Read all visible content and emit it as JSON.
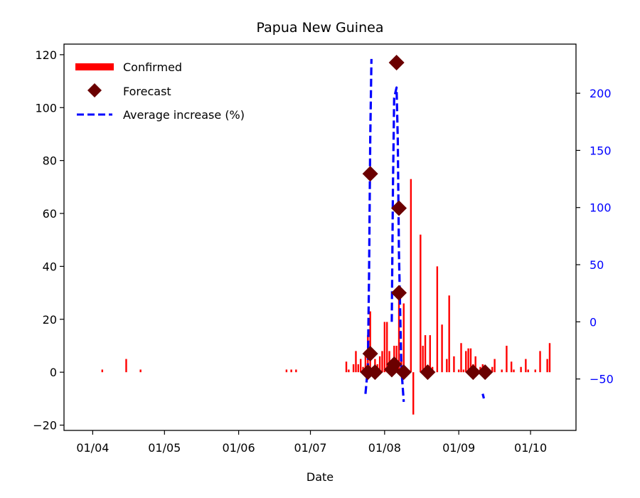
{
  "chart_data": {
    "type": "bar",
    "title": "Papua New Guinea",
    "xlabel": "Date",
    "ylabel": "",
    "y2label": "",
    "x_ticks": [
      "01/04",
      "01/05",
      "01/06",
      "01/07",
      "01/08",
      "01/09",
      "01/10"
    ],
    "x_tick_dates": [
      "2020-04-01",
      "2020-05-01",
      "2020-06-01",
      "2020-07-01",
      "2020-08-01",
      "2020-09-01",
      "2020-10-01"
    ],
    "xlim": [
      "2020-03-20",
      "2020-10-20"
    ],
    "ylim": [
      -22,
      124
    ],
    "y2lim": [
      -95,
      243
    ],
    "y_ticks": [
      -20,
      0,
      20,
      40,
      60,
      80,
      100,
      120
    ],
    "y2_ticks": [
      -50,
      0,
      50,
      100,
      150,
      200
    ],
    "legend_position": "top-left",
    "colors": {
      "confirmed": "#ff0000",
      "forecast": "#6b0000",
      "average": "#0000ff",
      "right_axis": "#0000ff"
    },
    "series": [
      {
        "name": "Confirmed",
        "kind": "bar",
        "axis": "left",
        "points": [
          [
            "2020-04-05",
            1
          ],
          [
            "2020-04-15",
            5
          ],
          [
            "2020-04-21",
            1
          ],
          [
            "2020-06-21",
            1
          ],
          [
            "2020-06-23",
            1
          ],
          [
            "2020-06-25",
            1
          ],
          [
            "2020-07-16",
            4
          ],
          [
            "2020-07-17",
            1
          ],
          [
            "2020-07-19",
            3
          ],
          [
            "2020-07-20",
            8
          ],
          [
            "2020-07-21",
            3
          ],
          [
            "2020-07-22",
            5
          ],
          [
            "2020-07-23",
            2
          ],
          [
            "2020-07-24",
            8
          ],
          [
            "2020-07-25",
            14
          ],
          [
            "2020-07-26",
            23
          ],
          [
            "2020-07-27",
            2
          ],
          [
            "2020-07-28",
            5
          ],
          [
            "2020-07-29",
            3
          ],
          [
            "2020-07-30",
            6
          ],
          [
            "2020-07-31",
            8
          ],
          [
            "2020-08-01",
            19
          ],
          [
            "2020-08-02",
            19
          ],
          [
            "2020-08-03",
            8
          ],
          [
            "2020-08-04",
            3
          ],
          [
            "2020-08-05",
            10
          ],
          [
            "2020-08-06",
            10
          ],
          [
            "2020-08-07",
            30
          ],
          [
            "2020-08-08",
            5
          ],
          [
            "2020-08-09",
            26
          ],
          [
            "2020-08-10",
            1
          ],
          [
            "2020-08-12",
            73
          ],
          [
            "2020-08-13",
            -16
          ],
          [
            "2020-08-16",
            52
          ],
          [
            "2020-08-17",
            10
          ],
          [
            "2020-08-18",
            14
          ],
          [
            "2020-08-20",
            14
          ],
          [
            "2020-08-21",
            2
          ],
          [
            "2020-08-23",
            40
          ],
          [
            "2020-08-25",
            18
          ],
          [
            "2020-08-27",
            5
          ],
          [
            "2020-08-28",
            29
          ],
          [
            "2020-08-30",
            6
          ],
          [
            "2020-09-01",
            1
          ],
          [
            "2020-09-02",
            11
          ],
          [
            "2020-09-03",
            1
          ],
          [
            "2020-09-04",
            8
          ],
          [
            "2020-09-05",
            9
          ],
          [
            "2020-09-06",
            9
          ],
          [
            "2020-09-07",
            3
          ],
          [
            "2020-09-08",
            6
          ],
          [
            "2020-09-09",
            1
          ],
          [
            "2020-09-10",
            2
          ],
          [
            "2020-09-11",
            3
          ],
          [
            "2020-09-12",
            2
          ],
          [
            "2020-09-14",
            1
          ],
          [
            "2020-09-15",
            2
          ],
          [
            "2020-09-16",
            5
          ],
          [
            "2020-09-19",
            1
          ],
          [
            "2020-09-21",
            10
          ],
          [
            "2020-09-23",
            4
          ],
          [
            "2020-09-24",
            1
          ],
          [
            "2020-09-27",
            2
          ],
          [
            "2020-09-29",
            5
          ],
          [
            "2020-09-30",
            1
          ],
          [
            "2020-10-03",
            1
          ],
          [
            "2020-10-05",
            8
          ],
          [
            "2020-10-08",
            5
          ],
          [
            "2020-10-09",
            11
          ]
        ]
      },
      {
        "name": "Forecast",
        "kind": "scatter",
        "axis": "left",
        "points": [
          [
            "2020-07-25",
            0
          ],
          [
            "2020-07-26",
            7
          ],
          [
            "2020-07-26",
            75
          ],
          [
            "2020-07-28",
            0
          ],
          [
            "2020-08-04",
            1
          ],
          [
            "2020-08-05",
            3
          ],
          [
            "2020-08-06",
            117
          ],
          [
            "2020-08-07",
            30
          ],
          [
            "2020-08-07",
            62
          ],
          [
            "2020-08-09",
            0
          ],
          [
            "2020-08-19",
            0
          ],
          [
            "2020-09-07",
            0
          ],
          [
            "2020-09-12",
            0
          ]
        ]
      },
      {
        "name": "Average increase (%)",
        "kind": "line",
        "axis": "right",
        "segments": [
          [
            [
              "2020-07-24",
              -63
            ],
            [
              "2020-07-25",
              -40
            ],
            [
              "2020-07-25.5",
              40
            ],
            [
              "2020-07-26",
              160
            ],
            [
              "2020-07-26.5",
              230
            ]
          ],
          [
            [
              "2020-08-04",
              0
            ],
            [
              "2020-08-04.5",
              120
            ],
            [
              "2020-08-05",
              196
            ],
            [
              "2020-08-06",
              205
            ],
            [
              "2020-08-06.5",
              160
            ],
            [
              "2020-08-07",
              60
            ],
            [
              "2020-08-08",
              -40
            ],
            [
              "2020-08-09",
              -70
            ]
          ],
          [
            [
              "2020-09-11",
              -63
            ],
            [
              "2020-09-11.5",
              -67
            ]
          ]
        ]
      }
    ]
  }
}
